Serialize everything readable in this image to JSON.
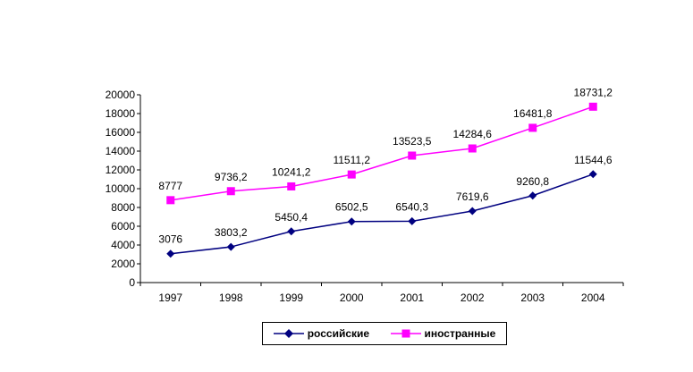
{
  "chart_data": {
    "type": "line",
    "categories": [
      "1997",
      "1998",
      "1999",
      "2000",
      "2001",
      "2002",
      "2003",
      "2004"
    ],
    "series": [
      {
        "name": "российские",
        "values": [
          3076,
          3803.2,
          5450.4,
          6502.5,
          6540.3,
          7619.6,
          9260.8,
          11544.6
        ],
        "labels": [
          "3076",
          "3803,2",
          "5450,4",
          "6502,5",
          "6540,3",
          "7619,6",
          "9260,8",
          "11544,6"
        ],
        "color": "#000080",
        "marker": "diamond"
      },
      {
        "name": "иностранные",
        "values": [
          8777,
          9736.2,
          10241.2,
          11511.2,
          13523.5,
          14284.6,
          16481.8,
          18731.2
        ],
        "labels": [
          "8777",
          "9736,2",
          "10241,2",
          "11511,2",
          "13523,5",
          "14284,6",
          "16481,8",
          "18731,2"
        ],
        "color": "#ff00ff",
        "marker": "square"
      }
    ],
    "ylim": [
      0,
      20000
    ],
    "yticks": [
      0,
      2000,
      4000,
      6000,
      8000,
      10000,
      12000,
      14000,
      16000,
      18000,
      20000
    ],
    "grid": false,
    "legend": "bottom"
  }
}
